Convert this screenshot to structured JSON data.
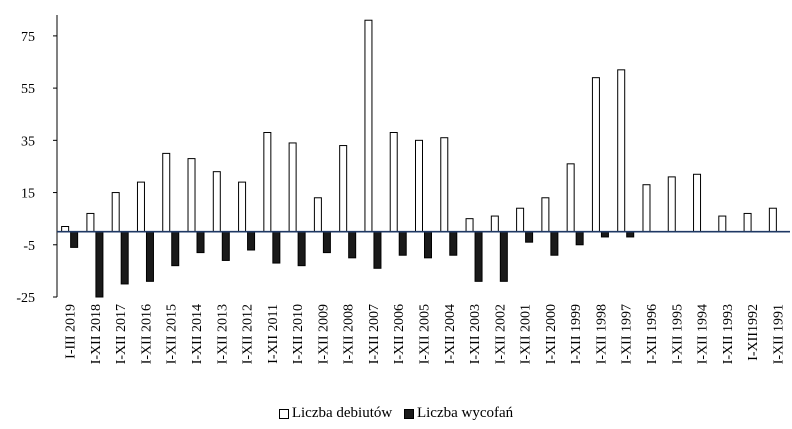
{
  "chart_data": {
    "type": "bar",
    "categories": [
      "I-III 2019",
      "I-XII 2018",
      "I-XII 2017",
      "I-XII 2016",
      "I-XII 2015",
      "I-XII 2014",
      "I-XII 2013",
      "I-XII 2012",
      "I-XII 2011",
      "I-XII 2010",
      "I-XII 2009",
      "I-XII 2008",
      "I-XII 2007",
      "I-XII 2006",
      "I-XII 2005",
      "I-XII 2004",
      "I-XII 2003",
      "I-XII 2002",
      "I-XII 2001",
      "I-XII 2000",
      "I-XII 1999",
      "I-XII 1998",
      "I-XII 1997",
      "I-XII 1996",
      "I-XII 1995",
      "I-XII 1994",
      "I-XII 1993",
      "I-XII1992",
      "I-XII 1991"
    ],
    "series": [
      {
        "name": "Liczba debiutów",
        "color": "#ffffff",
        "stroke": "#000000",
        "values": [
          2,
          7,
          15,
          19,
          30,
          28,
          23,
          19,
          38,
          34,
          13,
          33,
          81,
          38,
          35,
          36,
          5,
          6,
          9,
          13,
          26,
          59,
          62,
          18,
          21,
          22,
          6,
          7,
          9
        ]
      },
      {
        "name": "Liczba wycofań",
        "color": "#1a1a1a",
        "stroke": "#000000",
        "values": [
          -6,
          -25,
          -20,
          -19,
          -13,
          -8,
          -11,
          -7,
          -12,
          -13,
          -8,
          -10,
          -14,
          -9,
          -10,
          -9,
          -19,
          -19,
          -4,
          -9,
          -5,
          -2,
          -2,
          0,
          0,
          0,
          0,
          0,
          0
        ]
      }
    ],
    "yticks": [
      -25,
      -5,
      15,
      35,
      55,
      75
    ],
    "ylim": [
      -25,
      83
    ],
    "grid": false,
    "legend_position": "bottom",
    "title": "",
    "xlabel": "",
    "ylabel": ""
  }
}
